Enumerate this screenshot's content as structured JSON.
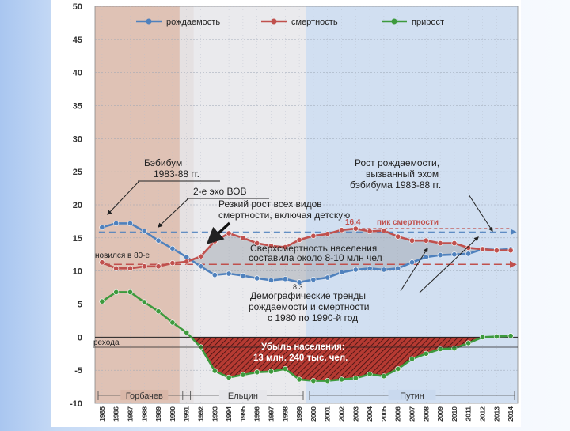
{
  "chart_data": {
    "type": "line",
    "ylim": [
      -10,
      50
    ],
    "yticks": [
      -10,
      -5,
      0,
      5,
      10,
      15,
      20,
      25,
      30,
      35,
      40,
      45,
      50
    ],
    "x": [
      "1985",
      "1986",
      "1987",
      "1988",
      "1989",
      "1990",
      "1991",
      "1992",
      "1993",
      "1994",
      "1995",
      "1996",
      "1997",
      "1998",
      "1999",
      "2000",
      "2001",
      "2002",
      "2003",
      "2004",
      "2005",
      "2006",
      "2007",
      "2008",
      "2009",
      "2010",
      "2011",
      "2012",
      "2013",
      "2014"
    ],
    "series": [
      {
        "name": "рождаемость",
        "color": "#4f81bd",
        "values": [
          16.6,
          17.2,
          17.2,
          16.0,
          14.6,
          13.4,
          12.1,
          10.7,
          9.4,
          9.6,
          9.3,
          8.9,
          8.6,
          8.8,
          8.3,
          8.7,
          9.0,
          9.8,
          10.2,
          10.4,
          10.2,
          10.4,
          11.3,
          12.1,
          12.4,
          12.5,
          12.6,
          13.3,
          13.2,
          13.3
        ]
      },
      {
        "name": "смертность",
        "color": "#c0504d",
        "values": [
          11.3,
          10.4,
          10.4,
          10.7,
          10.7,
          11.2,
          11.4,
          12.2,
          14.5,
          15.7,
          15.0,
          14.2,
          13.8,
          13.6,
          14.7,
          15.3,
          15.6,
          16.2,
          16.4,
          16.0,
          16.1,
          15.2,
          14.6,
          14.6,
          14.2,
          14.2,
          13.5,
          13.3,
          13.1,
          13.1
        ]
      },
      {
        "name": "прирост",
        "color": "#3d9a3d",
        "values": [
          5.4,
          6.8,
          6.8,
          5.3,
          3.9,
          2.2,
          0.7,
          -1.5,
          -5.1,
          -6.1,
          -5.7,
          -5.3,
          -5.2,
          -4.8,
          -6.4,
          -6.6,
          -6.6,
          -6.4,
          -6.2,
          -5.6,
          -5.9,
          -4.8,
          -3.3,
          -2.5,
          -1.8,
          -1.7,
          -0.9,
          0.0,
          0.1,
          0.2
        ]
      }
    ],
    "shaded_periods": [
      {
        "label": "Горбачев",
        "from": "1985",
        "to": "1991",
        "color": "#d9b7a8"
      },
      {
        "label": "Ельцин",
        "from": "1991",
        "to": "1999",
        "color": "#e6e6ea"
      },
      {
        "label": "Путин",
        "from": "2000",
        "to": "2014",
        "color": "#c9d9ee"
      }
    ],
    "reference_lines": [
      {
        "name": "baby-boom-level",
        "value": 15.9,
        "color": "#4f81bd"
      },
      {
        "name": "mortality-peak-level",
        "value": 16.4,
        "color": "#c0504d"
      },
      {
        "name": "mortality-1980s-level",
        "value": 11.0,
        "color": "#c0504d"
      },
      {
        "name": "zero-line",
        "value": 0,
        "color": "#222222"
      }
    ],
    "period_labels": [
      "Горбачев",
      "Ельцин",
      "Путин"
    ],
    "annotations": {
      "babyboom": [
        "Бэбибум",
        "1983-88 гг."
      ],
      "echo_war": "2-е эхо ВОВ",
      "sharp_rise": [
        "Резкий рост всех видов",
        "смертности, включая детскую"
      ],
      "peak_value": "16,4",
      "peak_label": "пик смертности",
      "births_growth": [
        "Рост рождаемости,",
        "вызванный эхом",
        "бэбибума 1983-88 гг."
      ],
      "excess_mortality": [
        "Сверхсмертность населения",
        "составила около 8-10 млн чел"
      ],
      "eighties_level": "новился в 80-е",
      "min_value": "8,3",
      "trends": [
        "Демографические тренды",
        "рождаемости и смертности",
        "с 1980 по 1990-й год"
      ],
      "transition": "рехода",
      "decline": [
        "Убыль населения:",
        "13 млн. 240 тыс. чел."
      ]
    }
  }
}
